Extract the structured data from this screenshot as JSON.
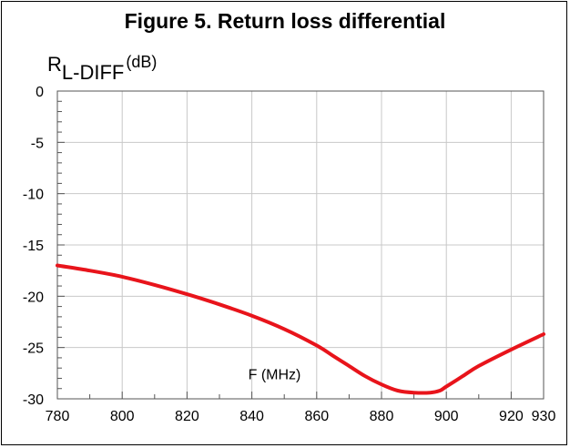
{
  "figure": {
    "title": "Figure 5. Return loss differential"
  },
  "chart_data": {
    "type": "line",
    "title": "Figure 5. Return loss differential",
    "ylabel_main": "R",
    "ylabel_sub": "L-DIFF",
    "ylabel_unit": "(dB)",
    "xlabel": "F (MHz)",
    "xlim": [
      780,
      930
    ],
    "ylim": [
      -30,
      0
    ],
    "x_ticks": [
      780,
      800,
      820,
      840,
      860,
      880,
      900,
      920,
      930
    ],
    "x_tick_labels": [
      "780",
      "800",
      "820",
      "840",
      "860",
      "880",
      "900",
      "920",
      "930"
    ],
    "y_ticks": [
      0,
      -5,
      -10,
      -15,
      -20,
      -25,
      -30
    ],
    "y_tick_labels": [
      "0",
      "-5",
      "-10",
      "-15",
      "-20",
      "-25",
      "-30"
    ],
    "grid": true,
    "line_color": "#e8141b",
    "series": [
      {
        "x": [
          780,
          790,
          800,
          810,
          820,
          830,
          840,
          850,
          860,
          865,
          870,
          875,
          880,
          885,
          890,
          895,
          898,
          900,
          905,
          910,
          920,
          930
        ],
        "y": [
          -17.0,
          -17.5,
          -18.1,
          -18.9,
          -19.8,
          -20.8,
          -21.9,
          -23.2,
          -24.8,
          -25.8,
          -26.8,
          -27.8,
          -28.6,
          -29.2,
          -29.4,
          -29.4,
          -29.2,
          -28.8,
          -27.8,
          -26.8,
          -25.2,
          -23.7
        ]
      }
    ]
  }
}
